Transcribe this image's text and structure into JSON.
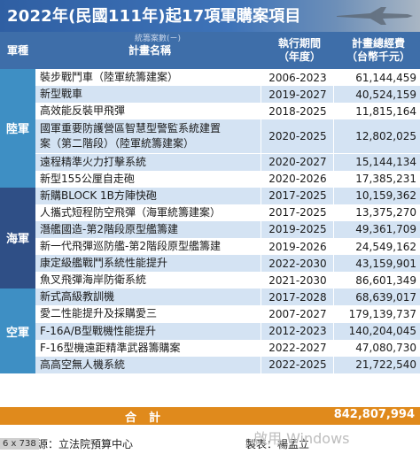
{
  "title": "2022年(民國111年)起17項軍購案項目",
  "headers": {
    "branch": "軍種",
    "name": "計畫名稱",
    "period": "執行期間\n（年度）",
    "budget": "計畫總經費\n（台幣千元）"
  },
  "header_watermark": "統籌案數(ㄧ)",
  "groups": [
    {
      "label": "陸軍",
      "color": "#3e8fc4",
      "rows": [
        {
          "name": "裝步戰鬥車（陸軍統籌建案）",
          "period": "2006-2023",
          "budget": "61,144,459"
        },
        {
          "name": "新型戰車",
          "period": "2019-2027",
          "budget": "40,524,159"
        },
        {
          "name": "高效能反裝甲飛彈",
          "period": "2018-2025",
          "budget": "11,815,164"
        },
        {
          "name": "國軍重要防護營區智慧型警監系統建置\n案（第二階段）（陸軍統籌建案）",
          "period": "2020-2025",
          "budget": "12,802,025"
        },
        {
          "name": "遠程精準火力打擊系統",
          "period": "2020-2027",
          "budget": "15,144,134"
        },
        {
          "name": "新型155公厘自走砲",
          "period": "2020-2026",
          "budget": "17,385,231"
        }
      ]
    },
    {
      "label": "海軍",
      "color": "#2f4f86",
      "rows": [
        {
          "name": "新購BLOCK 1B方陣快砲",
          "period": "2017-2025",
          "budget": "10,159,362"
        },
        {
          "name": "人攜式短程防空飛彈（海軍統籌建案）",
          "period": "2017-2025",
          "budget": "13,375,270"
        },
        {
          "name": "潛艦國造-第2階段原型艦籌建",
          "period": "2019-2025",
          "budget": "49,361,709"
        },
        {
          "name": "新一代飛彈巡防艦-第2階段原型艦籌建",
          "period": "2019-2026",
          "budget": "24,549,162"
        },
        {
          "name": "康定級艦戰鬥系統性能提升",
          "period": "2022-2030",
          "budget": "43,159,901"
        },
        {
          "name": "魚叉飛彈海岸防衛系統",
          "period": "2021-2030",
          "budget": "86,601,349"
        }
      ]
    },
    {
      "label": "空軍",
      "color": "#3e8fc4",
      "rows": [
        {
          "name": "新式高級教訓機",
          "period": "2017-2028",
          "budget": "68,639,017"
        },
        {
          "name": "愛二性能提升及採購愛三",
          "period": "2007-2027",
          "budget": "179,139,737"
        },
        {
          "name": "F-16A/B型戰機性能提升",
          "period": "2012-2023",
          "budget": "140,204,045"
        },
        {
          "name": "F-16型機遠距精準武器籌購案",
          "period": "2022-2027",
          "budget": "47,080,730"
        },
        {
          "name": "高高空無人機系統",
          "period": "2022-2025",
          "budget": "21,722,540"
        }
      ]
    }
  ],
  "total": {
    "label": "合計",
    "value": "842,807,994"
  },
  "source": "資料來源：立法院預算中心",
  "credit": "製表：楊孟立",
  "windows_watermark": "啟用 Windows",
  "dims_label": "6 x 738",
  "colors": {
    "header_bg": "#3e6ea9",
    "row_even": "#ffffff",
    "row_odd": "#d4e3f3",
    "total_bg": "#e08a1c"
  }
}
